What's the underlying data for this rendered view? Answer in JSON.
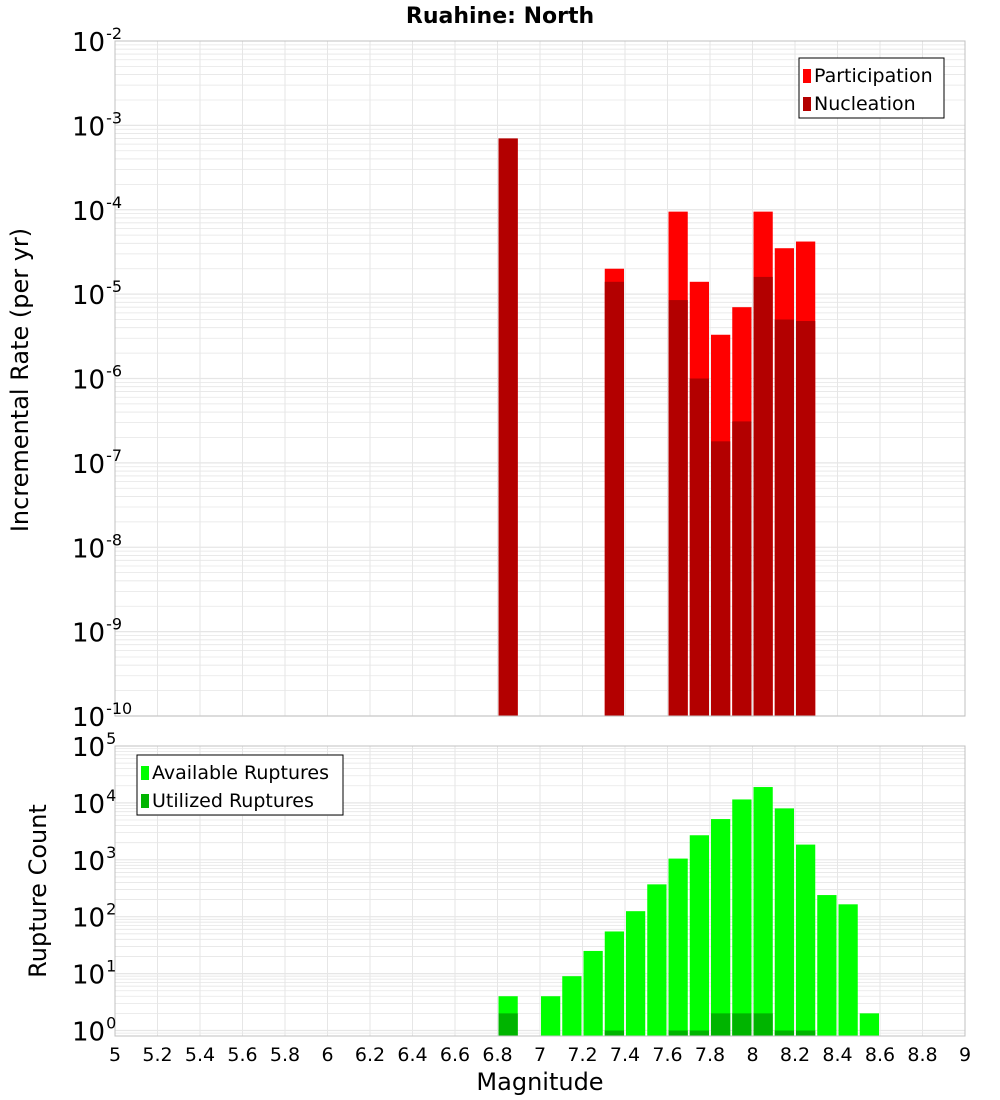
{
  "title": "Ruahine: North",
  "colors": {
    "participation": "#ff0000",
    "nucleation": "#b30000",
    "available": "#00ff00",
    "utilized": "#00b400",
    "grid": "#e6e6e6",
    "frame": "#c0c0c0"
  },
  "chart_data": [
    {
      "type": "bar",
      "title": "Ruahine: North",
      "xlabel": "",
      "ylabel": "Incremental Rate (per yr)",
      "yscale": "log",
      "ylim": [
        1e-10,
        0.01
      ],
      "ytick_exponents": [
        -2,
        -3,
        -4,
        -5,
        -6,
        -7,
        -8,
        -9,
        -10
      ],
      "xlim": [
        5,
        9
      ],
      "bar_width": 0.1,
      "legend_position": "top-right",
      "grid": true,
      "series": [
        {
          "name": "Participation",
          "color": "#ff0000",
          "points": [
            {
              "x": 6.85,
              "y": 0.0007
            },
            {
              "x": 7.35,
              "y": 2e-05
            },
            {
              "x": 7.65,
              "y": 9.5e-05
            },
            {
              "x": 7.75,
              "y": 1.4e-05
            },
            {
              "x": 7.85,
              "y": 3.3e-06
            },
            {
              "x": 7.95,
              "y": 7e-06
            },
            {
              "x": 8.05,
              "y": 9.5e-05
            },
            {
              "x": 8.15,
              "y": 3.5e-05
            },
            {
              "x": 8.25,
              "y": 4.2e-05
            }
          ]
        },
        {
          "name": "Nucleation",
          "color": "#b30000",
          "points": [
            {
              "x": 6.85,
              "y": 0.0007
            },
            {
              "x": 7.35,
              "y": 1.4e-05
            },
            {
              "x": 7.65,
              "y": 8.5e-06
            },
            {
              "x": 7.75,
              "y": 1e-06
            },
            {
              "x": 7.85,
              "y": 1.8e-07
            },
            {
              "x": 7.95,
              "y": 3.1e-07
            },
            {
              "x": 8.05,
              "y": 1.6e-05
            },
            {
              "x": 8.15,
              "y": 5e-06
            },
            {
              "x": 8.25,
              "y": 4.8e-06
            }
          ]
        }
      ]
    },
    {
      "type": "bar",
      "xlabel": "Magnitude",
      "ylabel": "Rupture Count",
      "yscale": "log",
      "ylim": [
        0.8,
        100000.0
      ],
      "ytick_exponents": [
        5,
        4,
        3,
        2,
        1,
        0
      ],
      "xlim": [
        5,
        9
      ],
      "xticks": [
        "5",
        "5.2",
        "5.4",
        "5.6",
        "5.8",
        "6",
        "6.2",
        "6.4",
        "6.6",
        "6.8",
        "7",
        "7.2",
        "7.4",
        "7.6",
        "7.8",
        "8",
        "8.2",
        "8.4",
        "8.6",
        "8.8",
        "9"
      ],
      "bar_width": 0.1,
      "legend_position": "top-left",
      "grid": true,
      "series": [
        {
          "name": "Available Ruptures",
          "color": "#00ff00",
          "points": [
            {
              "x": 6.85,
              "y": 4
            },
            {
              "x": 7.05,
              "y": 4
            },
            {
              "x": 7.15,
              "y": 9
            },
            {
              "x": 7.25,
              "y": 25
            },
            {
              "x": 7.35,
              "y": 55
            },
            {
              "x": 7.45,
              "y": 125
            },
            {
              "x": 7.55,
              "y": 370
            },
            {
              "x": 7.65,
              "y": 1050
            },
            {
              "x": 7.75,
              "y": 2700
            },
            {
              "x": 7.85,
              "y": 5200
            },
            {
              "x": 7.95,
              "y": 11500
            },
            {
              "x": 8.05,
              "y": 19000
            },
            {
              "x": 8.15,
              "y": 8000
            },
            {
              "x": 8.25,
              "y": 1850
            },
            {
              "x": 8.35,
              "y": 240
            },
            {
              "x": 8.45,
              "y": 165
            },
            {
              "x": 8.55,
              "y": 2
            }
          ]
        },
        {
          "name": "Utilized Ruptures",
          "color": "#00b400",
          "points": [
            {
              "x": 6.85,
              "y": 2
            },
            {
              "x": 7.35,
              "y": 1
            },
            {
              "x": 7.65,
              "y": 1
            },
            {
              "x": 7.75,
              "y": 1
            },
            {
              "x": 7.85,
              "y": 2
            },
            {
              "x": 7.95,
              "y": 2
            },
            {
              "x": 8.05,
              "y": 2
            },
            {
              "x": 8.15,
              "y": 1
            },
            {
              "x": 8.25,
              "y": 1
            }
          ]
        }
      ]
    }
  ]
}
